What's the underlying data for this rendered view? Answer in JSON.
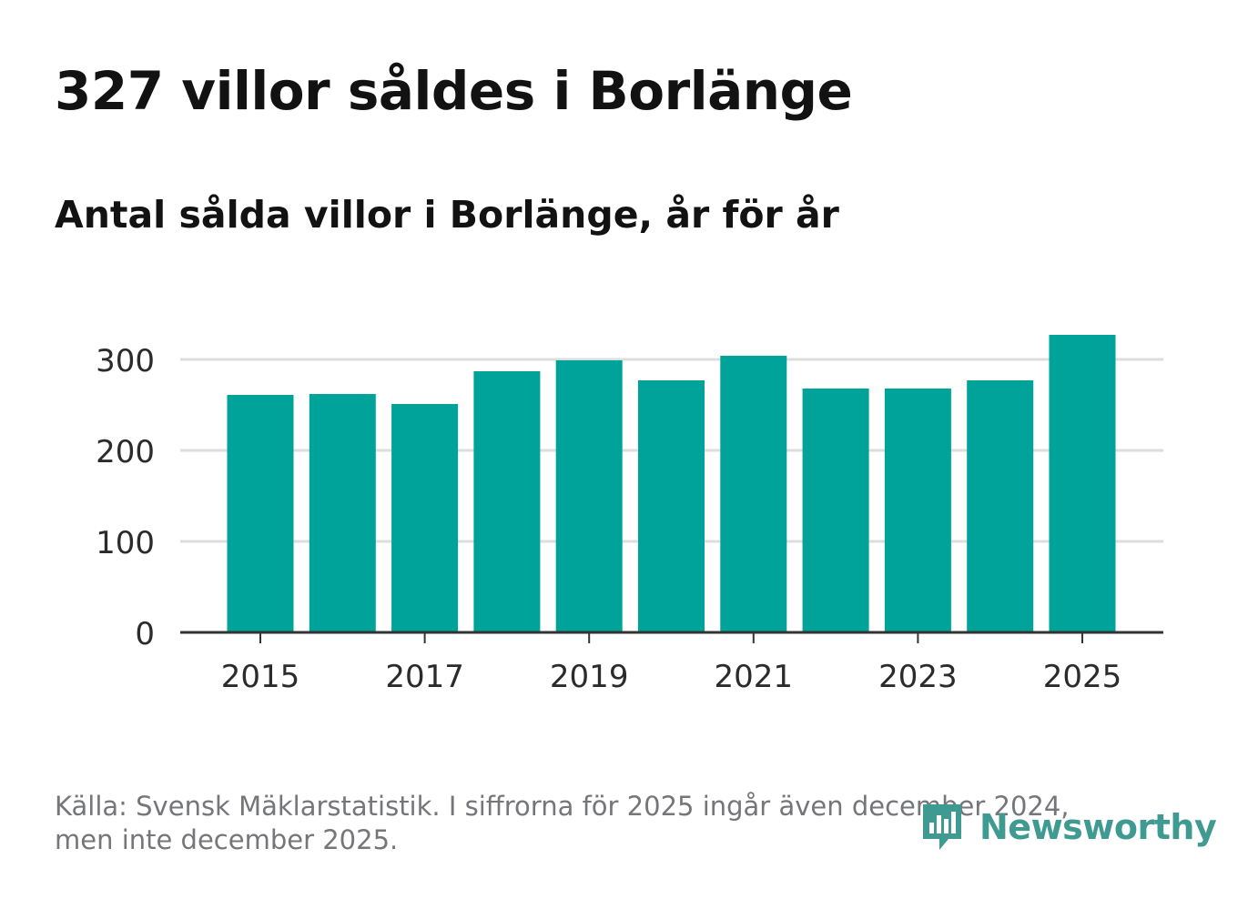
{
  "title": "327 villor såldes i Borlänge",
  "subtitle": "Antal sålda villor i Borlänge, år för år",
  "footer": {
    "source_line1": "Källa: Svensk Mäklarstatistik. I siffrorna för 2025 ingår även december 2024,",
    "source_line2": "men inte december 2025."
  },
  "logo": {
    "name": "Newsworthy",
    "icon": "newsworthy-logo-icon"
  },
  "colors": {
    "bar": "#00a39a",
    "grid": "#dddddd",
    "axis": "#333333",
    "tick_text": "#2b2b2b",
    "logo": "#3f9a92"
  },
  "chart_data": {
    "type": "bar",
    "title": "Antal sålda villor i Borlänge, år för år",
    "xlabel": "",
    "ylabel": "",
    "categories": [
      "2015",
      "2016",
      "2017",
      "2018",
      "2019",
      "2020",
      "2021",
      "2022",
      "2023",
      "2024",
      "2025"
    ],
    "values": [
      261,
      262,
      251,
      287,
      299,
      277,
      304,
      268,
      268,
      277,
      327
    ],
    "x_tick_labels": [
      "2015",
      "2017",
      "2019",
      "2021",
      "2023",
      "2025"
    ],
    "y_ticks": [
      0,
      100,
      200,
      300
    ],
    "ylim": [
      0,
      330
    ],
    "grid": true,
    "legend": "none"
  }
}
